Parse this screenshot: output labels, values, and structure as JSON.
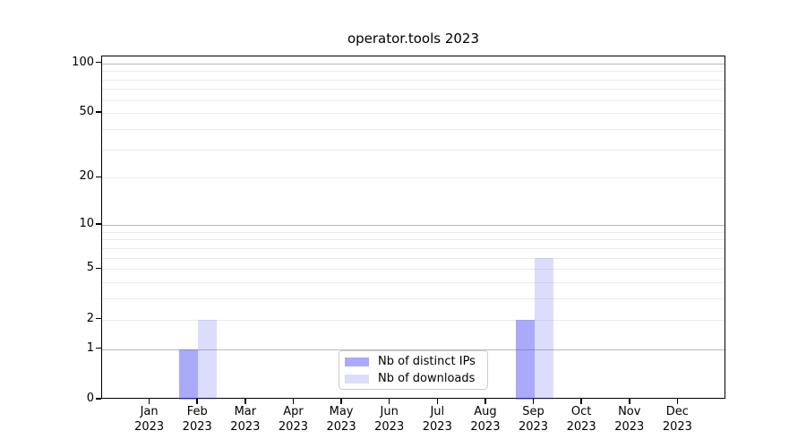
{
  "colors": {
    "ips": "rgba(85,85,245,0.5)",
    "downloads": "rgba(90,90,240,0.21)",
    "grid_major": "#b8b8b8",
    "grid_minor": "#ebebeb",
    "axis": "#000000",
    "legend_border": "#cccccc",
    "background": "#ffffff"
  },
  "chart_data": {
    "type": "bar",
    "title": "operator.tools 2023",
    "yscale": "log1p",
    "ylim": [
      0,
      110
    ],
    "yticks": [
      0,
      1,
      2,
      5,
      10,
      20,
      50,
      100
    ],
    "grid_major_values": [
      1,
      10,
      100
    ],
    "grid_minor_values": [
      2,
      3,
      4,
      5,
      6,
      7,
      8,
      9,
      20,
      30,
      40,
      50,
      60,
      70,
      80,
      90
    ],
    "categories": [
      "Jan 2023",
      "Feb 2023",
      "Mar 2023",
      "Apr 2023",
      "May 2023",
      "Jun 2023",
      "Jul 2023",
      "Aug 2023",
      "Sep 2023",
      "Oct 2023",
      "Nov 2023",
      "Dec 2023"
    ],
    "series": [
      {
        "name": "Nb of distinct IPs",
        "key": "ips",
        "values": [
          0,
          1,
          0,
          0,
          0,
          0,
          0,
          0,
          2,
          0,
          0,
          0
        ]
      },
      {
        "name": "Nb of downloads",
        "key": "downloads",
        "values": [
          0,
          2,
          0,
          0,
          0,
          0,
          0,
          0,
          6,
          0,
          0,
          0
        ]
      }
    ],
    "grid": true,
    "legend_position": "lower center"
  }
}
